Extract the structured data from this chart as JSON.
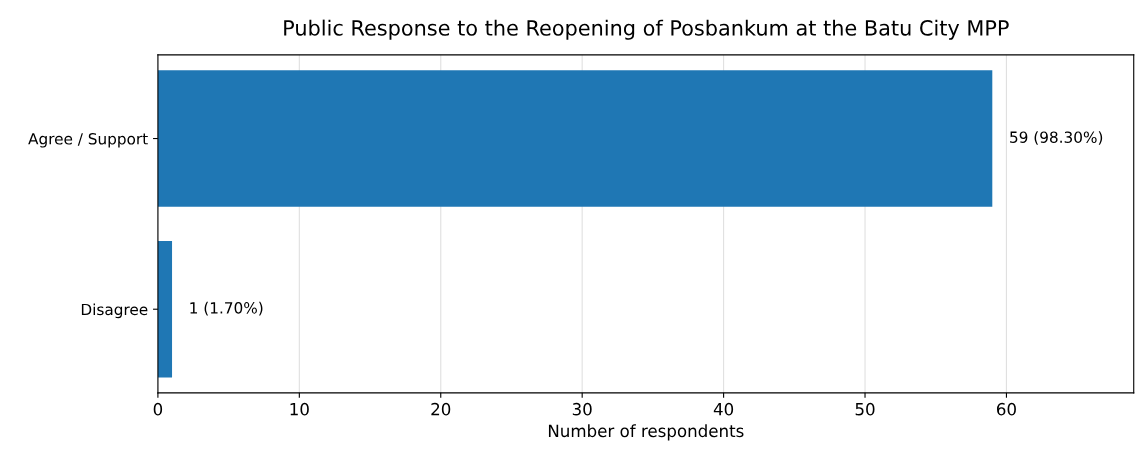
{
  "chart_data": {
    "type": "bar",
    "orientation": "horizontal",
    "title": "Public Response to the Reopening of Posbankum at the Batu City MPP",
    "xlabel": "Number of respondents",
    "categories": [
      "Agree / Support",
      "Disagree"
    ],
    "values": [
      59,
      1
    ],
    "color": "#1f77b4",
    "value_labels": [
      "59 (98.30%)",
      "1 (1.70%)"
    ],
    "xlim": [
      0,
      69
    ],
    "xticks": [
      0,
      10,
      20,
      30,
      40,
      50,
      60
    ],
    "grid": "x"
  }
}
